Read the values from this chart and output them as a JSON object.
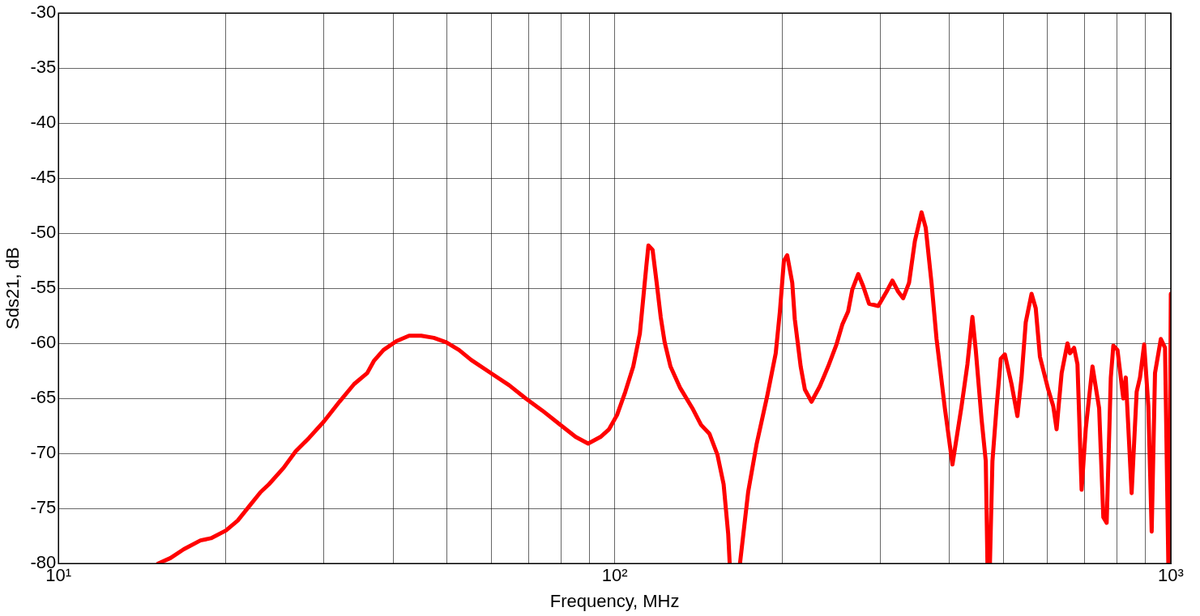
{
  "chart_data": {
    "type": "line",
    "xlabel": "Frequency, MHz",
    "ylabel": "Sds21, dB",
    "log": "x",
    "grid": true,
    "legend": false,
    "marker": "none",
    "line_style": "solid",
    "xlim": [
      10,
      1000
    ],
    "ylim": [
      -80,
      -30
    ],
    "xticks": [
      {
        "value": 10,
        "label": "10¹"
      },
      {
        "value": 20,
        "label": null
      },
      {
        "value": 30,
        "label": null
      },
      {
        "value": 40,
        "label": null
      },
      {
        "value": 50,
        "label": null
      },
      {
        "value": 60,
        "label": null
      },
      {
        "value": 70,
        "label": null
      },
      {
        "value": 80,
        "label": null
      },
      {
        "value": 90,
        "label": null
      },
      {
        "value": 100,
        "label": "10²"
      },
      {
        "value": 200,
        "label": null
      },
      {
        "value": 300,
        "label": null
      },
      {
        "value": 400,
        "label": null
      },
      {
        "value": 500,
        "label": null
      },
      {
        "value": 600,
        "label": null
      },
      {
        "value": 700,
        "label": null
      },
      {
        "value": 800,
        "label": null
      },
      {
        "value": 900,
        "label": null
      },
      {
        "value": 1000,
        "label": "10³"
      }
    ],
    "yticks": [
      -80,
      -75,
      -70,
      -65,
      -60,
      -55,
      -50,
      -45,
      -40,
      -35,
      -30
    ],
    "series": [
      {
        "color": "#ff0000",
        "x": [
          15.1,
          15.9,
          16.8,
          18.0,
          18.8,
          20.0,
          21.0,
          22.1,
          23.1,
          23.9,
          25.4,
          26.7,
          28.2,
          30.0,
          32.0,
          34.0,
          35.9,
          36.9,
          38.4,
          40.5,
          42.7,
          44.9,
          47.3,
          49.8,
          52.5,
          55.2,
          60.3,
          64.6,
          69.2,
          74.1,
          79.4,
          85.1,
          89.6,
          94.3,
          97.7,
          101,
          104.5,
          108,
          111,
          114,
          115,
          117,
          119,
          121,
          123,
          126,
          131,
          138,
          143,
          148,
          153,
          157,
          160,
          161,
          164,
          168,
          173.8,
          179.9,
          188.2,
          194.8,
          198.2,
          201.5,
          204.3,
          208.6,
          210.8,
          216.0,
          219.8,
          225.9,
          233.8,
          242.0,
          250.5,
          256.6,
          262.9,
          267.5,
          274.1,
          279.8,
          286.7,
          297.8,
          308.3,
          315.8,
          323.4,
          330.2,
          338.3,
          346.6,
          356.3,
          362.5,
          371.3,
          379.1,
          392.4,
          404.9,
          420.5,
          430.8,
          439.8,
          445.9,
          456.8,
          464.8,
          468.0,
          470,
          472.9,
          477.8,
          486.2,
          494.6,
          503.0,
          517.1,
          529.8,
          539.0,
          548.4,
          561.8,
          571.6,
          581.6,
          602.0,
          614.6,
          623.2,
          629.7,
          636.3,
          651.8,
          658.6,
          670.0,
          679.4,
          691.2,
          703.3,
          715.5,
          723.0,
          743.2,
          756.2,
          766.7,
          780.0,
          788.2,
          801.8,
          821.4,
          829.9,
          850.2,
          868.1,
          880.2,
          895.5,
          911.1,
          923.8,
          936.6,
          959.5,
          976.3,
          989.7,
          992,
          995,
          998,
          1000
        ],
        "values": [
          -80,
          -79.5,
          -78.7,
          -77.9,
          -77.7,
          -77.0,
          -76.1,
          -74.7,
          -73.5,
          -72.8,
          -71.3,
          -69.8,
          -68.6,
          -67.1,
          -65.3,
          -63.7,
          -62.7,
          -61.6,
          -60.6,
          -59.8,
          -59.3,
          -59.3,
          -59.5,
          -59.9,
          -60.6,
          -61.5,
          -62.8,
          -63.8,
          -65.0,
          -66.1,
          -67.3,
          -68.5,
          -69.1,
          -68.5,
          -67.8,
          -66.5,
          -64.4,
          -62.1,
          -59.1,
          -53.0,
          -51.1,
          -51.5,
          -54.5,
          -57.6,
          -59.9,
          -62.1,
          -64.0,
          -65.9,
          -67.4,
          -68.2,
          -70.1,
          -72.8,
          -77.3,
          -80,
          null,
          -80,
          -73.5,
          -69.2,
          -64.7,
          -60.9,
          -57.1,
          -52.5,
          -52.0,
          -54.5,
          -57.8,
          -62.1,
          -64.2,
          -65.3,
          -63.9,
          -62.1,
          -60.1,
          -58.3,
          -57.1,
          -55.1,
          -53.7,
          -54.8,
          -56.4,
          -56.6,
          -55.3,
          -54.3,
          -55.3,
          -55.9,
          -54.5,
          -50.7,
          -48.1,
          -49.5,
          -54.5,
          -59.6,
          -65.9,
          -71.0,
          -65.7,
          -61.9,
          -57.6,
          -60.6,
          -66.9,
          -70.7,
          -80,
          null,
          -80,
          -70.7,
          -65.7,
          -61.4,
          -61.0,
          -63.7,
          -66.6,
          -63.1,
          -58.1,
          -55.5,
          -56.8,
          -61.2,
          -64.2,
          -65.7,
          -67.8,
          -65.2,
          -62.7,
          -60.0,
          -60.9,
          -60.4,
          -61.9,
          -73.3,
          -67.7,
          -64.2,
          -62.1,
          -65.9,
          -75.8,
          -76.3,
          -63.1,
          -60.2,
          -60.6,
          -65.0,
          -63.1,
          -73.6,
          -64.4,
          -63.1,
          -60.1,
          -65.7,
          -77.1,
          -62.7,
          -59.6,
          -60.4,
          -80,
          null,
          -80,
          -63,
          -55.5
        ]
      }
    ]
  }
}
